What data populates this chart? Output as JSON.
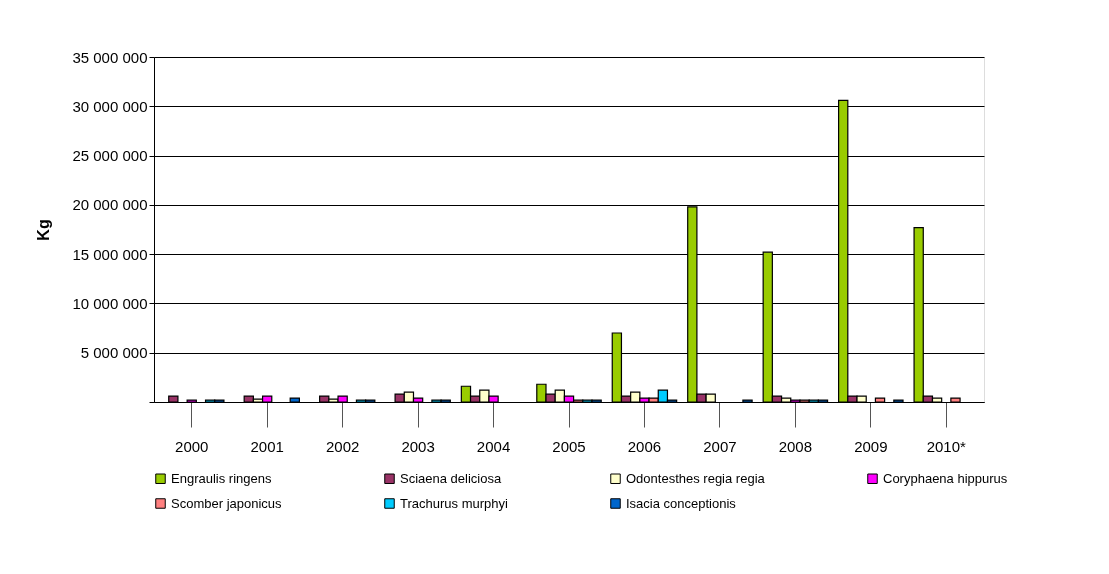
{
  "chart_data": {
    "type": "bar",
    "ylabel": "Kg",
    "categories": [
      "2000",
      "2001",
      "2002",
      "2003",
      "2004",
      "2005",
      "2006",
      "2007",
      "2008",
      "2009",
      "2010*"
    ],
    "series": [
      {
        "name": "Engraulis ringens",
        "color": "#99cc00",
        "values": [
          null,
          null,
          null,
          null,
          1600000,
          1800000,
          7000000,
          19800000,
          15200000,
          30600000,
          17700000
        ]
      },
      {
        "name": "Sciaena deliciosa",
        "color": "#993366",
        "values": [
          600000,
          600000,
          600000,
          800000,
          600000,
          800000,
          600000,
          800000,
          600000,
          600000,
          600000
        ]
      },
      {
        "name": "Odontesthes regia regia",
        "color": "#ffffcc",
        "values": [
          null,
          300000,
          300000,
          1000000,
          1200000,
          1200000,
          1000000,
          800000,
          400000,
          600000,
          400000
        ]
      },
      {
        "name": "Coryphaena hippurus",
        "color": "#ff00ff",
        "values": [
          200000,
          600000,
          600000,
          400000,
          600000,
          600000,
          400000,
          null,
          200000,
          null,
          null
        ]
      },
      {
        "name": "Scomber japonicus",
        "color": "#ff8080",
        "values": [
          null,
          null,
          null,
          null,
          null,
          200000,
          400000,
          null,
          200000,
          400000,
          400000
        ]
      },
      {
        "name": " Trachurus murphyi",
        "color": "#00ccff",
        "values": [
          200000,
          null,
          200000,
          200000,
          null,
          200000,
          1200000,
          null,
          200000,
          null,
          null
        ]
      },
      {
        "name": "Isacia conceptionis",
        "color": "#0066cc",
        "values": [
          200000,
          400000,
          200000,
          200000,
          null,
          200000,
          200000,
          200000,
          200000,
          200000,
          null
        ]
      }
    ],
    "ylim": [
      0,
      35000000
    ],
    "yticks": [
      {
        "value": 0,
        "label": null
      },
      {
        "value": 5000000,
        "label": "5 000 000"
      },
      {
        "value": 10000000,
        "label": "10 000 000"
      },
      {
        "value": 15000000,
        "label": "15 000 000"
      },
      {
        "value": 20000000,
        "label": "20 000 000"
      },
      {
        "value": 25000000,
        "label": "25 000 000"
      },
      {
        "value": 30000000,
        "label": "30 000 000"
      },
      {
        "value": 35000000,
        "label": "35 000 000"
      }
    ],
    "grid": "y",
    "legend": "bottom"
  }
}
